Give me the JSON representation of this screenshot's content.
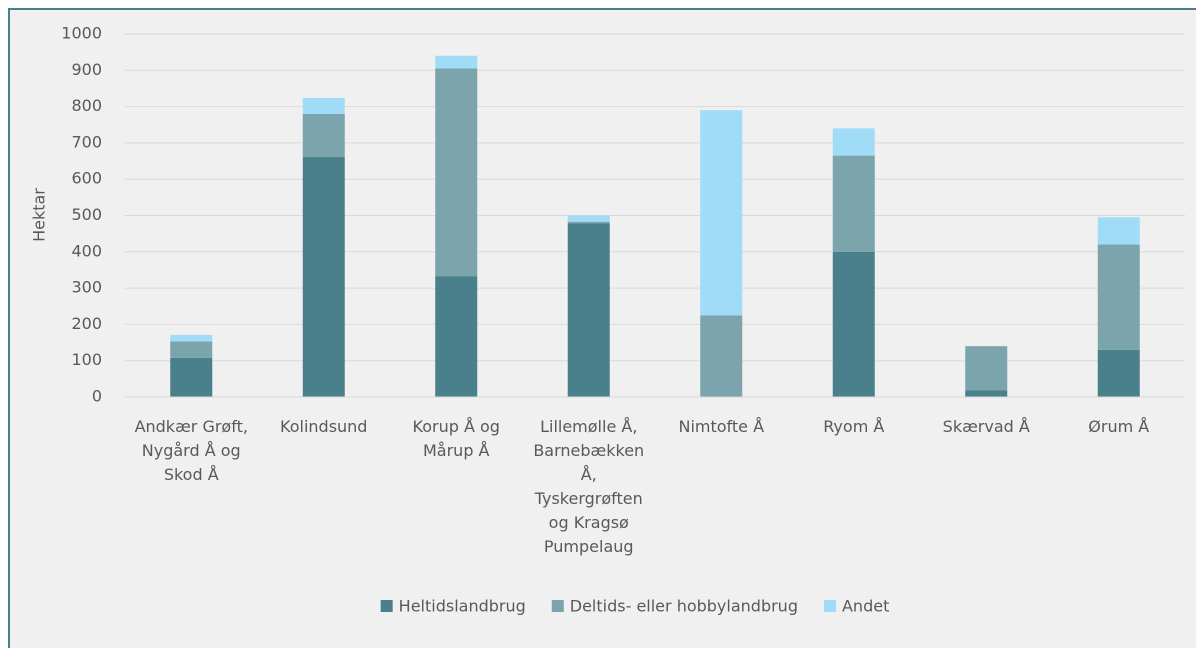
{
  "chart_data": {
    "type": "stacked_bar",
    "y_label": "Hektar",
    "categories": [
      "Andkær Grøft, Nygård Å og Skod Å",
      "Kolindsund",
      "Korup Å og Mårup Å",
      "Lillemølle Å, Barnebækken Å, Tyskergrøften og Kragsø Pumpelaug",
      "Nimtofte Å",
      "Ryom Å",
      "Skærvad Å",
      "Ørum Å"
    ],
    "series": [
      {
        "name": "Heltidslandbrug",
        "color": "#4a7f8c",
        "values": [
          108,
          661,
          333,
          478,
          0,
          400,
          18,
          130
        ]
      },
      {
        "name": "Deltids- eller hobbylandbrug",
        "color": "#7ba4ac",
        "values": [
          45,
          119,
          572,
          5,
          225,
          265,
          122,
          290
        ]
      },
      {
        "name": "Andet",
        "color": "#a0dcf7",
        "values": [
          18,
          44,
          35,
          17,
          565,
          75,
          0,
          75
        ]
      }
    ],
    "ylim": [
      0,
      1000
    ],
    "yticks": [
      0,
      100,
      200,
      300,
      400,
      500,
      600,
      700,
      800,
      900,
      1000
    ],
    "grid": true,
    "legend": "bottom"
  }
}
